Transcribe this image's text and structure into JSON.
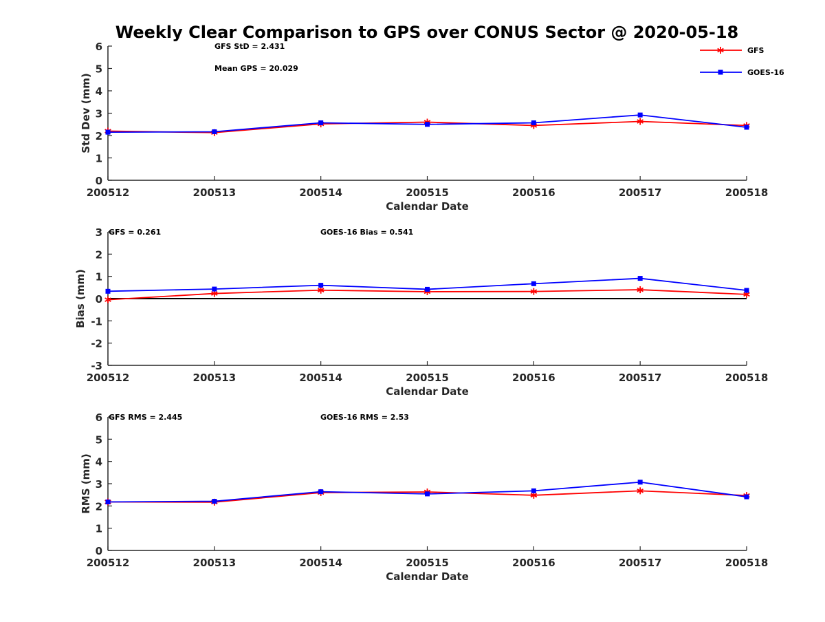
{
  "title": "Weekly Clear Comparison to GPS over CONUS Sector @ 2020-05-18",
  "legend": {
    "placement": "top-right",
    "entries": [
      {
        "name": "GFS",
        "color": "#ff0000",
        "marker": "asterisk"
      },
      {
        "name": "GOES-16",
        "color": "#0000ff",
        "marker": "square"
      }
    ]
  },
  "chart_data": [
    {
      "type": "line",
      "xlabel": "Calendar Date",
      "ylabel": "Std Dev (mm)",
      "x": [
        "200512",
        "200513",
        "200514",
        "200515",
        "200516",
        "200517",
        "200518"
      ],
      "ylim": [
        0,
        6
      ],
      "yticks": [
        "0",
        "1",
        "2",
        "3",
        "4",
        "5",
        "6"
      ],
      "grid": false,
      "annotations": [
        "GFS StD = 2.431",
        "Mean GPS = 20.029"
      ],
      "series": [
        {
          "name": "GFS",
          "color": "#ff0000",
          "marker": "asterisk",
          "values": [
            2.2,
            2.13,
            2.52,
            2.6,
            2.45,
            2.63,
            2.45
          ]
        },
        {
          "name": "GOES-16",
          "color": "#0000ff",
          "marker": "square",
          "values": [
            2.15,
            2.17,
            2.57,
            2.5,
            2.57,
            2.92,
            2.37
          ]
        }
      ]
    },
    {
      "type": "line",
      "xlabel": "Calendar Date",
      "ylabel": "Bias (mm)",
      "x": [
        "200512",
        "200513",
        "200514",
        "200515",
        "200516",
        "200517",
        "200518"
      ],
      "ylim": [
        -3,
        3
      ],
      "yticks": [
        "-3",
        "-2",
        "-1",
        "0",
        "1",
        "2",
        "3"
      ],
      "grid": false,
      "zero_line": true,
      "annotations": [
        "GFS = 0.261",
        "GOES-16 Bias  = 0.541"
      ],
      "series": [
        {
          "name": "GFS",
          "color": "#ff0000",
          "marker": "asterisk",
          "values": [
            -0.05,
            0.23,
            0.38,
            0.31,
            0.32,
            0.4,
            0.19
          ]
        },
        {
          "name": "GOES-16",
          "color": "#0000ff",
          "marker": "square",
          "values": [
            0.33,
            0.43,
            0.6,
            0.42,
            0.67,
            0.91,
            0.37
          ]
        }
      ]
    },
    {
      "type": "line",
      "xlabel": "Calendar Date",
      "ylabel": "RMS (mm)",
      "x": [
        "200512",
        "200513",
        "200514",
        "200515",
        "200516",
        "200517",
        "200518"
      ],
      "ylim": [
        0,
        6
      ],
      "yticks": [
        "0",
        "1",
        "2",
        "3",
        "4",
        "5",
        "6"
      ],
      "grid": false,
      "annotations": [
        "GFS RMS = 2.445",
        "GOES-16 RMS = 2.53"
      ],
      "series": [
        {
          "name": "GFS",
          "color": "#ff0000",
          "marker": "asterisk",
          "values": [
            2.18,
            2.17,
            2.6,
            2.63,
            2.48,
            2.68,
            2.47
          ]
        },
        {
          "name": "GOES-16",
          "color": "#0000ff",
          "marker": "square",
          "values": [
            2.18,
            2.21,
            2.64,
            2.54,
            2.68,
            3.07,
            2.41
          ]
        }
      ]
    }
  ]
}
